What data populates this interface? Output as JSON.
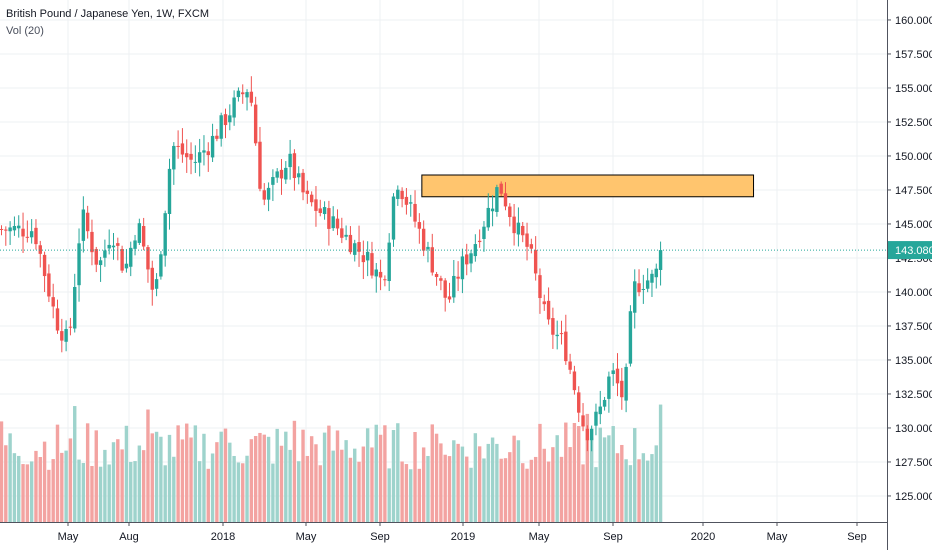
{
  "legend": {
    "symbol": "British Pound / Japanese Yen, 1W, FXCM",
    "volume": "Vol (20)"
  },
  "price_tag": "143.080",
  "colors": {
    "up": "#26a69a",
    "down": "#ef5350",
    "vol_up": "#9ed3cc",
    "vol_down": "#f3a3a1",
    "grid": "#eef0f3",
    "zone_fill": "#ffc56e",
    "zone_border": "#000000",
    "price_line": "#26a69a"
  },
  "chart_data": {
    "type": "candlestick",
    "title": "British Pound / Japanese Yen, 1W, FXCM",
    "indicator": "Vol (20)",
    "x_tick_labels": [
      "May",
      "Aug",
      "2018",
      "May",
      "Sep",
      "2019",
      "May",
      "Sep",
      "2020",
      "May",
      "Sep"
    ],
    "y_tick_labels": [
      "160.000",
      "157.500",
      "155.000",
      "152.500",
      "150.000",
      "147.500",
      "145.000",
      "142.500",
      "140.000",
      "137.500",
      "135.000",
      "132.500",
      "130.000",
      "127.500",
      "125.000"
    ],
    "ylim": [
      123.6,
      161.1
    ],
    "last_price": 143.08,
    "zone": {
      "start": "2018-11-12",
      "end": "2020-05-04",
      "low": 147.0,
      "high": 148.6
    },
    "grid": true,
    "close_path": [
      {
        "date": "2017-02-20",
        "value": 144.6
      },
      {
        "date": "2017-03-27",
        "value": 138.0
      },
      {
        "date": "2017-04-17",
        "value": 136.2
      },
      {
        "date": "2017-05-08",
        "value": 145.8
      },
      {
        "date": "2017-06-05",
        "value": 141.8
      },
      {
        "date": "2017-06-26",
        "value": 144.6
      },
      {
        "date": "2017-07-17",
        "value": 141.5
      },
      {
        "date": "2017-08-07",
        "value": 145.2
      },
      {
        "date": "2017-09-04",
        "value": 139.4
      },
      {
        "date": "2017-10-02",
        "value": 150.8
      },
      {
        "date": "2017-11-06",
        "value": 149.5
      },
      {
        "date": "2017-12-04",
        "value": 151.0
      },
      {
        "date": "2018-01-08",
        "value": 153.6
      },
      {
        "date": "2018-02-05",
        "value": 155.2
      },
      {
        "date": "2018-02-26",
        "value": 146.5
      },
      {
        "date": "2018-04-09",
        "value": 149.8
      },
      {
        "date": "2018-05-07",
        "value": 146.8
      },
      {
        "date": "2018-06-18",
        "value": 145.2
      },
      {
        "date": "2018-08-20",
        "value": 142.2
      },
      {
        "date": "2018-09-10",
        "value": 140.6
      },
      {
        "date": "2018-10-01",
        "value": 148.5
      },
      {
        "date": "2018-11-05",
        "value": 144.8
      },
      {
        "date": "2018-12-24",
        "value": 139.2
      },
      {
        "date": "2019-01-14",
        "value": 141.8
      },
      {
        "date": "2019-02-04",
        "value": 143.4
      },
      {
        "date": "2019-03-18",
        "value": 147.9
      },
      {
        "date": "2019-04-15",
        "value": 144.6
      },
      {
        "date": "2019-05-06",
        "value": 143.0
      },
      {
        "date": "2019-06-03",
        "value": 137.6
      },
      {
        "date": "2019-07-01",
        "value": 136.2
      },
      {
        "date": "2019-08-05",
        "value": 129.6
      },
      {
        "date": "2019-08-26",
        "value": 130.9
      },
      {
        "date": "2019-09-16",
        "value": 134.2
      },
      {
        "date": "2019-10-07",
        "value": 132.0
      },
      {
        "date": "2019-10-21",
        "value": 140.2
      },
      {
        "date": "2019-11-04",
        "value": 140.8
      },
      {
        "date": "2019-11-25",
        "value": 141.0
      },
      {
        "date": "2019-12-09",
        "value": 143.1
      }
    ]
  }
}
